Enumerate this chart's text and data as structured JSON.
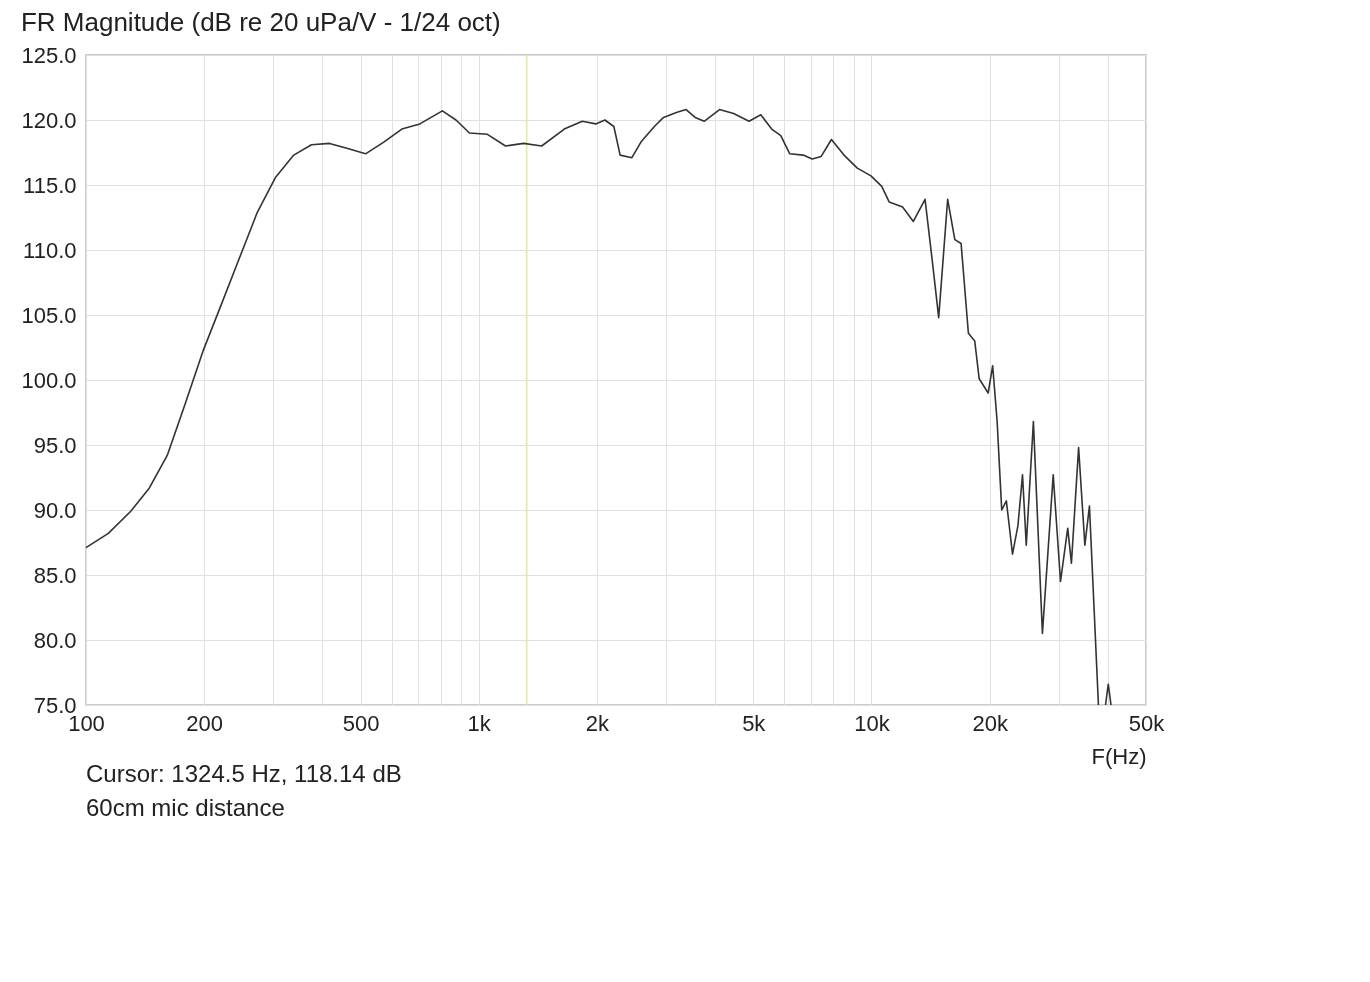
{
  "chart_data": {
    "type": "line",
    "title": "FR Magnitude (dB re 20 uPa/V - 1/24 oct)",
    "xlabel": "F(Hz)",
    "log": "x",
    "grid": true,
    "marker": "none",
    "line_style": "solid",
    "xlim": [
      100,
      50000
    ],
    "ylim": [
      75,
      125
    ],
    "xticks": [
      {
        "value": 100,
        "label": "100"
      },
      {
        "value": 200,
        "label": "200"
      },
      {
        "value": 300,
        "label": null
      },
      {
        "value": 400,
        "label": null
      },
      {
        "value": 500,
        "label": "500"
      },
      {
        "value": 600,
        "label": null
      },
      {
        "value": 700,
        "label": null
      },
      {
        "value": 800,
        "label": null
      },
      {
        "value": 900,
        "label": null
      },
      {
        "value": 1000,
        "label": "1k"
      },
      {
        "value": 2000,
        "label": "2k"
      },
      {
        "value": 3000,
        "label": null
      },
      {
        "value": 4000,
        "label": null
      },
      {
        "value": 5000,
        "label": "5k"
      },
      {
        "value": 6000,
        "label": null
      },
      {
        "value": 7000,
        "label": null
      },
      {
        "value": 8000,
        "label": null
      },
      {
        "value": 9000,
        "label": null
      },
      {
        "value": 10000,
        "label": "10k"
      },
      {
        "value": 20000,
        "label": "20k"
      },
      {
        "value": 30000,
        "label": null
      },
      {
        "value": 40000,
        "label": null
      },
      {
        "value": 50000,
        "label": "50k"
      }
    ],
    "yticks": [
      {
        "value": 75,
        "label": "75.0"
      },
      {
        "value": 80,
        "label": "80.0"
      },
      {
        "value": 85,
        "label": "85.0"
      },
      {
        "value": 90,
        "label": "90.0"
      },
      {
        "value": 95,
        "label": "95.0"
      },
      {
        "value": 100,
        "label": "100.0"
      },
      {
        "value": 105,
        "label": "105.0"
      },
      {
        "value": 110,
        "label": "110.0"
      },
      {
        "value": 115,
        "label": "115.0"
      },
      {
        "value": 120,
        "label": "120.0"
      },
      {
        "value": 125,
        "label": "125.0"
      }
    ],
    "ref_lines": [
      {
        "axis": "x",
        "value": 1324.5,
        "label": null,
        "color": "#e6e6a0"
      }
    ],
    "annotations": [
      "Cursor: 1324.5 Hz, 118.14 dB",
      "60cm mic distance"
    ],
    "series": [
      {
        "color": "#333333",
        "x": [
          100,
          114,
          130,
          145,
          161,
          179,
          199,
          221,
          246,
          273,
          304,
          338,
          375,
          417,
          464,
          515,
          573,
          637,
          708,
          808,
          875,
          947,
          1052,
          1170,
          1301,
          1446,
          1651,
          1835,
          1986,
          2095,
          2208,
          2291,
          2454,
          2588,
          2800,
          2954,
          3199,
          3373,
          3556,
          3750,
          4102,
          4457,
          4877,
          5226,
          5571,
          5875,
          6194,
          6699,
          7063,
          7447,
          7906,
          8511,
          9204,
          9970,
          10620,
          11090,
          12000,
          12780,
          13690,
          14290,
          14830,
          15630,
          16300,
          16910,
          17650,
          18320,
          18800,
          19820,
          20350,
          20890,
          21460,
          22050,
          22860,
          23600,
          24240,
          24780,
          25840,
          27240,
          29020,
          30290,
          31600,
          32290,
          33680,
          34940,
          35890,
          37830,
          38600,
          39440,
          40080,
          40730
        ],
        "values": [
          87.1,
          88.2,
          89.9,
          91.7,
          94.2,
          98.2,
          102.3,
          105.8,
          109.4,
          112.9,
          115.6,
          117.3,
          118.1,
          118.2,
          117.8,
          117.4,
          118.3,
          119.3,
          119.7,
          120.7,
          120.0,
          119.0,
          118.9,
          118.0,
          118.2,
          118.0,
          119.3,
          119.9,
          119.7,
          120.0,
          119.5,
          117.3,
          117.1,
          118.3,
          119.5,
          120.2,
          120.6,
          120.8,
          120.2,
          119.9,
          120.8,
          120.5,
          119.9,
          120.4,
          119.3,
          118.8,
          117.4,
          117.3,
          117.0,
          117.2,
          118.5,
          117.3,
          116.3,
          115.7,
          114.9,
          113.7,
          113.3,
          112.2,
          113.9,
          109.1,
          104.8,
          113.9,
          110.8,
          110.5,
          103.6,
          103.0,
          100.1,
          99.0,
          101.1,
          96.8,
          90.0,
          90.7,
          86.6,
          88.8,
          92.7,
          87.3,
          96.8,
          80.5,
          92.7,
          84.5,
          88.6,
          85.9,
          94.8,
          87.3,
          90.3,
          75.0,
          null,
          75.0,
          76.6,
          75.0
        ]
      }
    ]
  }
}
